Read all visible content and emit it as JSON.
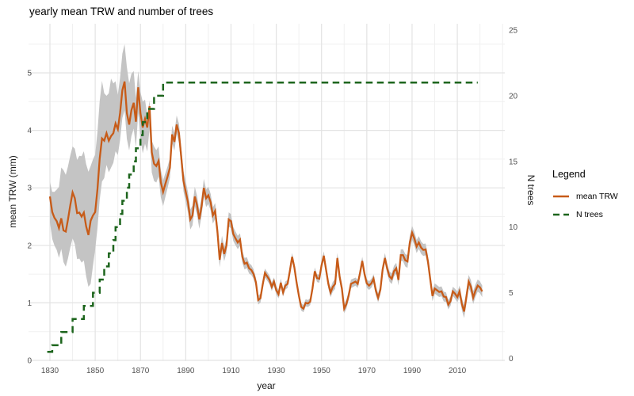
{
  "chart_data": {
    "type": "line",
    "title": "yearly mean TRW and number of trees",
    "xlabel": "year",
    "ylabel_left": "mean TRW (mm)",
    "ylabel_right": "N trees",
    "x_axis": {
      "ticks": [
        1830,
        1850,
        1870,
        1890,
        1910,
        1930,
        1950,
        1970,
        1990,
        2010
      ],
      "minor_ticks": [
        1840,
        1860,
        1880,
        1900,
        1920,
        1940,
        1960,
        1980,
        2000,
        2020,
        2030
      ],
      "range": [
        1819,
        2031
      ]
    },
    "y_left_axis": {
      "ticks": [
        0,
        1,
        2,
        3,
        4,
        5
      ],
      "minor_ticks": [
        0.5,
        1.5,
        2.5,
        3.5,
        4.5,
        5.5
      ],
      "range": [
        0,
        5.85
      ]
    },
    "y_right_axis": {
      "ticks": [
        0,
        5,
        10,
        15,
        20,
        25
      ],
      "range": [
        0,
        25.6
      ]
    },
    "grid": true,
    "legend": {
      "title": "Legend",
      "position": "right",
      "items": [
        {
          "label": "mean TRW",
          "color": "#C75B18",
          "dash": false
        },
        {
          "label": "N trees",
          "color": "#1D651D",
          "dash": true
        }
      ]
    },
    "colors": {
      "mean_trw": "#C75B18",
      "n_trees": "#1D651D",
      "ribbon": "#c4c4c4",
      "grid_major": "#e3e3e3",
      "grid_minor": "#f0f0f0",
      "tick_text": "#525252"
    },
    "series": [
      {
        "name": "mean TRW",
        "axis": "left",
        "style": "solid",
        "year_start": 1830,
        "values": [
          2.85,
          2.58,
          2.48,
          2.42,
          2.3,
          2.47,
          2.26,
          2.24,
          2.45,
          2.7,
          2.92,
          2.82,
          2.56,
          2.57,
          2.5,
          2.57,
          2.33,
          2.18,
          2.43,
          2.52,
          2.58,
          2.98,
          3.51,
          3.86,
          3.82,
          3.95,
          3.82,
          3.9,
          3.95,
          4.12,
          4.02,
          4.3,
          4.7,
          4.85,
          4.3,
          4.1,
          4.35,
          4.48,
          4.15,
          4.75,
          4.3,
          4.05,
          4.2,
          4.05,
          4.42,
          3.62,
          3.42,
          3.38,
          3.47,
          3.1,
          2.93,
          3.07,
          3.2,
          3.35,
          3.93,
          3.8,
          4.1,
          3.95,
          3.55,
          3.12,
          2.93,
          2.75,
          2.45,
          2.52,
          2.85,
          2.7,
          2.45,
          2.68,
          3.0,
          2.82,
          2.87,
          2.75,
          2.52,
          2.6,
          2.25,
          1.75,
          2.04,
          1.85,
          2.0,
          2.45,
          2.42,
          2.2,
          2.12,
          2.05,
          2.1,
          1.8,
          1.68,
          1.7,
          1.6,
          1.57,
          1.5,
          1.36,
          1.05,
          1.08,
          1.32,
          1.52,
          1.46,
          1.4,
          1.28,
          1.37,
          1.22,
          1.15,
          1.35,
          1.18,
          1.3,
          1.33,
          1.55,
          1.8,
          1.62,
          1.35,
          1.12,
          0.93,
          0.9,
          1.0,
          0.99,
          1.02,
          1.25,
          1.55,
          1.43,
          1.42,
          1.65,
          1.82,
          1.58,
          1.33,
          1.18,
          1.28,
          1.33,
          1.78,
          1.45,
          1.25,
          0.9,
          0.98,
          1.13,
          1.33,
          1.35,
          1.37,
          1.33,
          1.52,
          1.73,
          1.5,
          1.34,
          1.3,
          1.34,
          1.42,
          1.21,
          1.09,
          1.23,
          1.58,
          1.78,
          1.6,
          1.46,
          1.42,
          1.55,
          1.6,
          1.4,
          1.83,
          1.83,
          1.74,
          1.72,
          2.05,
          2.22,
          2.12,
          1.98,
          2.05,
          1.96,
          1.92,
          1.93,
          1.72,
          1.42,
          1.12,
          1.25,
          1.22,
          1.19,
          1.2,
          1.11,
          1.1,
          0.97,
          1.03,
          1.2,
          1.16,
          1.1,
          1.2,
          0.98,
          0.85,
          1.1,
          1.37,
          1.28,
          1.09,
          1.21,
          1.3,
          1.27,
          1.2
        ]
      },
      {
        "name": "mean TRW uncertainty ribbon",
        "axis": "left",
        "type": "ribbon",
        "band_anchors": [
          [
            1830,
            0.45,
            0.25
          ],
          [
            1833,
            0.5,
            0.55
          ],
          [
            1836,
            0.55,
            1.05
          ],
          [
            1840,
            0.8,
            0.8
          ],
          [
            1844,
            0.8,
            1.05
          ],
          [
            1847,
            0.9,
            1.1
          ],
          [
            1848,
            1.1,
            0.95
          ],
          [
            1850,
            0.65,
            1.0
          ],
          [
            1853,
            0.75,
            1.0
          ],
          [
            1855,
            0.55,
            0.65
          ],
          [
            1857,
            0.55,
            1.0
          ],
          [
            1860,
            0.45,
            0.6
          ],
          [
            1863,
            0.5,
            0.65
          ],
          [
            1864,
            0.45,
            0.8
          ],
          [
            1867,
            0.45,
            0.55
          ],
          [
            1869,
            0.45,
            0.28
          ],
          [
            1871,
            0.45,
            0.45
          ],
          [
            1874,
            0.4,
            0.1
          ],
          [
            1876,
            0.3,
            0.3
          ],
          [
            1880,
            0.25,
            0.2
          ],
          [
            1884,
            0.15,
            0.15
          ],
          [
            1890,
            0.18,
            0.18
          ],
          [
            1900,
            0.15,
            0.15
          ],
          [
            1905,
            0.13,
            0.13
          ],
          [
            1912,
            0.12,
            0.12
          ],
          [
            1920,
            0.08,
            0.08
          ],
          [
            1935,
            0.07,
            0.07
          ],
          [
            1945,
            0.06,
            0.06
          ],
          [
            1957,
            0.09,
            0.09
          ],
          [
            1965,
            0.07,
            0.07
          ],
          [
            1975,
            0.08,
            0.08
          ],
          [
            1985,
            0.1,
            0.1
          ],
          [
            1990,
            0.12,
            0.12
          ],
          [
            2000,
            0.09,
            0.09
          ],
          [
            2008,
            0.08,
            0.08
          ],
          [
            2014,
            0.12,
            0.12
          ],
          [
            2021,
            0.1,
            0.1
          ]
        ]
      },
      {
        "name": "N trees",
        "axis": "right",
        "style": "dashed",
        "steps": [
          [
            1828.8,
            0.5
          ],
          [
            1831,
            1
          ],
          [
            1835,
            2
          ],
          [
            1840,
            3
          ],
          [
            1845,
            4
          ],
          [
            1849,
            5
          ],
          [
            1852,
            6
          ],
          [
            1854,
            7
          ],
          [
            1856,
            8
          ],
          [
            1858,
            9
          ],
          [
            1859,
            10
          ],
          [
            1861,
            11
          ],
          [
            1862,
            12
          ],
          [
            1864,
            13
          ],
          [
            1865,
            14
          ],
          [
            1867,
            15
          ],
          [
            1868,
            16
          ],
          [
            1870,
            17
          ],
          [
            1871,
            18
          ],
          [
            1873,
            19
          ],
          [
            1876,
            20
          ],
          [
            1880,
            21
          ],
          [
            2019,
            21
          ]
        ]
      }
    ]
  }
}
